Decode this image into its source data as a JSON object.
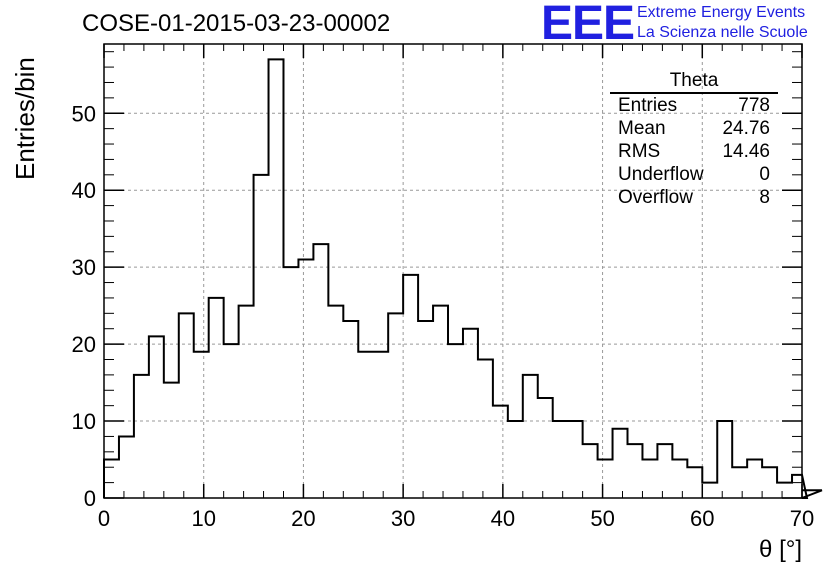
{
  "chart_data": {
    "type": "bar",
    "title": "COSE-01-2015-03-23-00002",
    "xlabel": "θ [°]",
    "ylabel": "Entries/bin",
    "xlim": [
      0,
      70
    ],
    "ylim": [
      0,
      59
    ],
    "bin_width": 1.5,
    "x_ticks": [
      "0",
      "10",
      "20",
      "30",
      "40",
      "50",
      "60",
      "70"
    ],
    "y_ticks": [
      "0",
      "10",
      "20",
      "30",
      "40",
      "50"
    ],
    "grid": true,
    "values": [
      5,
      8,
      16,
      21,
      15,
      24,
      19,
      26,
      20,
      25,
      42,
      57,
      30,
      31,
      33,
      25,
      23,
      19,
      19,
      24,
      29,
      23,
      25,
      20,
      22,
      18,
      12,
      10,
      16,
      13,
      10,
      10,
      7,
      5,
      9,
      7,
      5,
      7,
      5,
      4,
      2,
      10,
      4,
      5,
      4,
      2,
      3,
      0,
      1
    ]
  },
  "stats_box": {
    "title": "Theta",
    "rows": [
      {
        "label": "Entries",
        "value": "778"
      },
      {
        "label": "Mean",
        "value": "24.76"
      },
      {
        "label": "RMS",
        "value": "14.46"
      },
      {
        "label": "Underflow",
        "value": "0"
      },
      {
        "label": "Overflow",
        "value": "8"
      }
    ]
  },
  "logo": {
    "mark": "EEE",
    "line1": "Extreme Energy Events",
    "line2": "La Scienza nelle Scuole",
    "color": "#2020e0"
  }
}
